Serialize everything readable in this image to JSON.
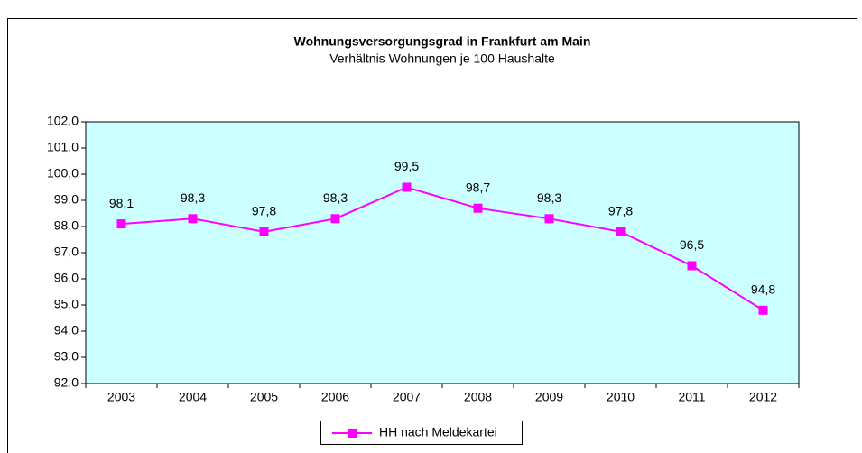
{
  "chart_data": {
    "type": "line",
    "title": "Wohnungsversorgungsgrad in Frankfurt am Main",
    "subtitle": "Verhältnis Wohnungen je 100 Haushalte",
    "categories": [
      "2003",
      "2004",
      "2005",
      "2006",
      "2007",
      "2008",
      "2009",
      "2010",
      "2011",
      "2012"
    ],
    "series": [
      {
        "name": "HH nach Meldekartei",
        "color": "#ff00ff",
        "values": [
          98.1,
          98.3,
          97.8,
          98.3,
          99.5,
          98.7,
          98.3,
          97.8,
          96.5,
          94.8
        ],
        "value_labels": [
          "98,1",
          "98,3",
          "97,8",
          "98,3",
          "99,5",
          "98,7",
          "98,3",
          "97,8",
          "96,5",
          "94,8"
        ]
      }
    ],
    "ylim": [
      92,
      102
    ],
    "yticks": [
      {
        "value": 92,
        "label": "92,0"
      },
      {
        "value": 93,
        "label": "93,0"
      },
      {
        "value": 94,
        "label": "94,0"
      },
      {
        "value": 95,
        "label": "95,0"
      },
      {
        "value": 96,
        "label": "96,0"
      },
      {
        "value": 97,
        "label": "97,0"
      },
      {
        "value": 98,
        "label": "98,0"
      },
      {
        "value": 99,
        "label": "99,0"
      },
      {
        "value": 100,
        "label": "100,0"
      },
      {
        "value": 101,
        "label": "101,0"
      },
      {
        "value": 102,
        "label": "102,0"
      }
    ],
    "plot_background": "#ccffff",
    "legend": "bottom"
  }
}
